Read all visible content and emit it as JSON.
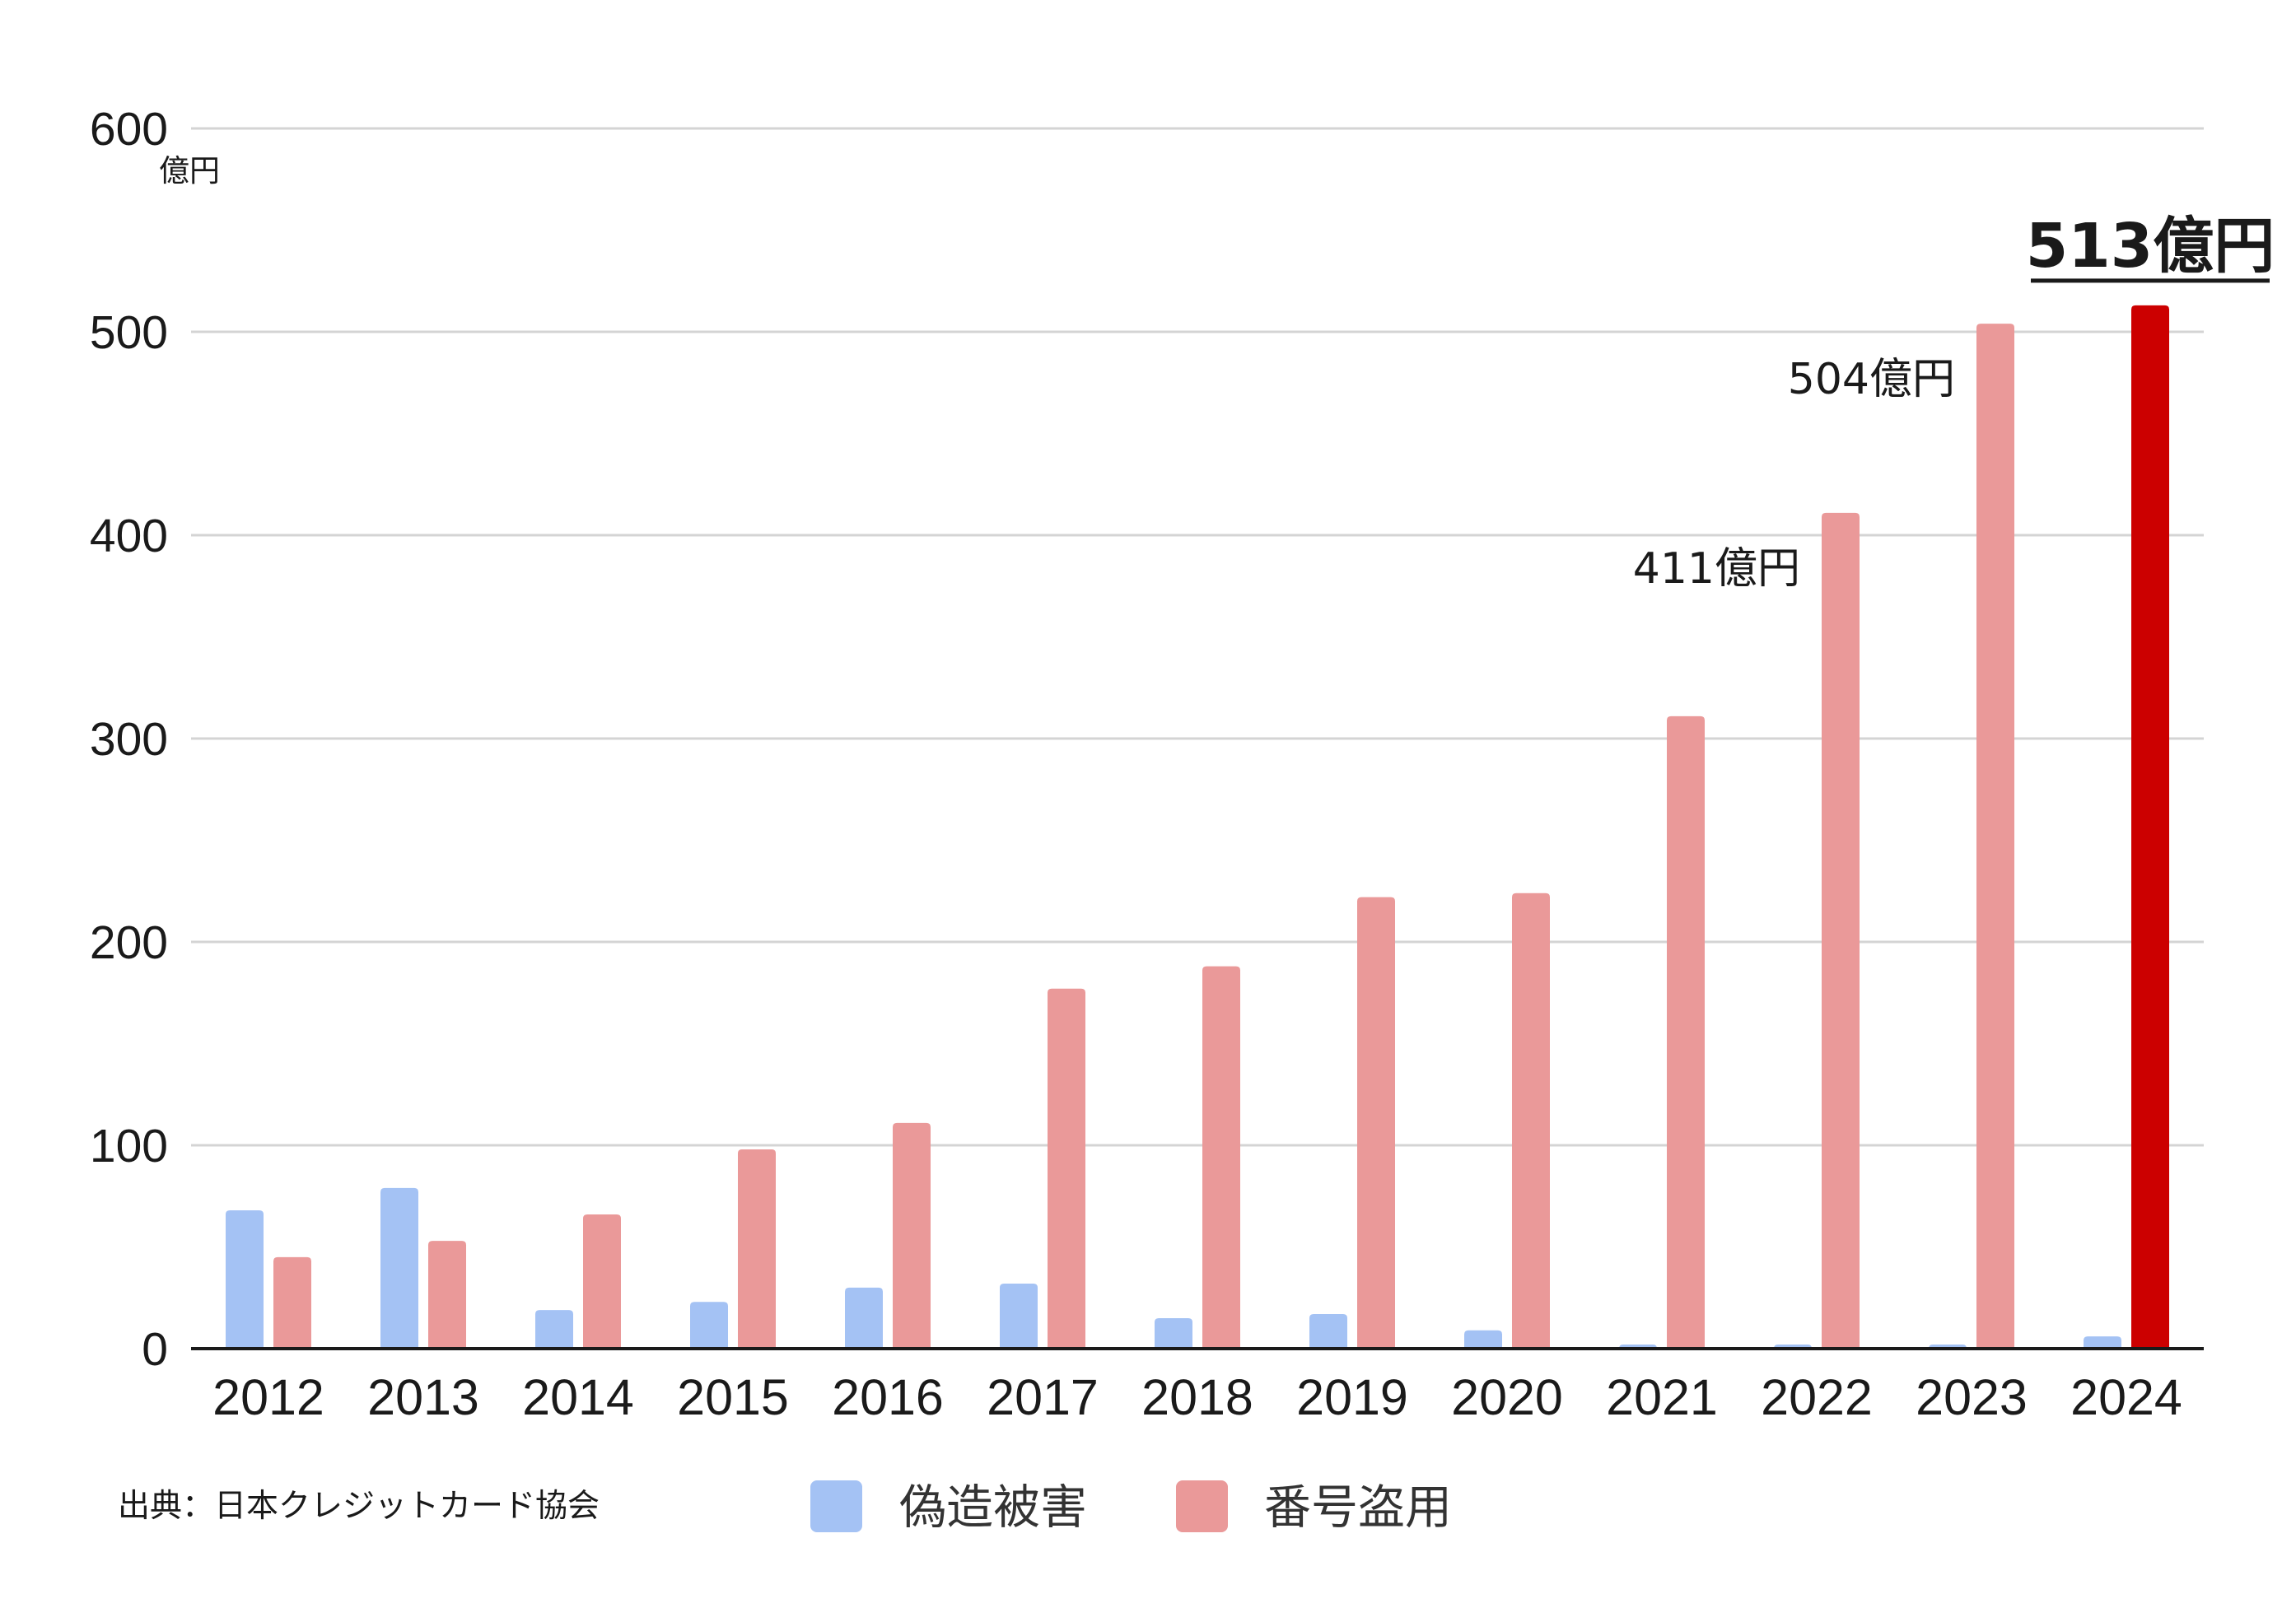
{
  "chart_data": {
    "type": "bar",
    "categories": [
      "2012",
      "2013",
      "2014",
      "2015",
      "2016",
      "2017",
      "2018",
      "2019",
      "2020",
      "2021",
      "2022",
      "2023",
      "2024"
    ],
    "series": [
      {
        "name": "偽造被害",
        "color": "#a4c2f4",
        "values": [
          68,
          79,
          19,
          23,
          30,
          32,
          15,
          17,
          9,
          2,
          2,
          2,
          6
        ]
      },
      {
        "name": "番号盗用",
        "color": "#ea9999",
        "values": [
          45,
          53,
          66,
          98,
          111,
          177,
          188,
          222,
          224,
          311,
          411,
          504,
          513
        ]
      }
    ],
    "highlight": {
      "category": "2024",
      "series": "番号盗用",
      "color": "#cc0000"
    },
    "ylim": [
      0,
      600
    ],
    "yticks": [
      "0",
      "100",
      "200",
      "300",
      "400",
      "500",
      "600"
    ],
    "ylabel": "",
    "y_unit": "億円",
    "grid": true,
    "legend_position": "bottom",
    "annotations": [
      {
        "category": "2022",
        "text": "411億円",
        "style": "normal"
      },
      {
        "category": "2023",
        "text": "504億円",
        "style": "normal"
      },
      {
        "category": "2024",
        "text": "513億円",
        "style": "bold-underline"
      }
    ]
  },
  "source_note": "出典：日本クレジットカード協会"
}
